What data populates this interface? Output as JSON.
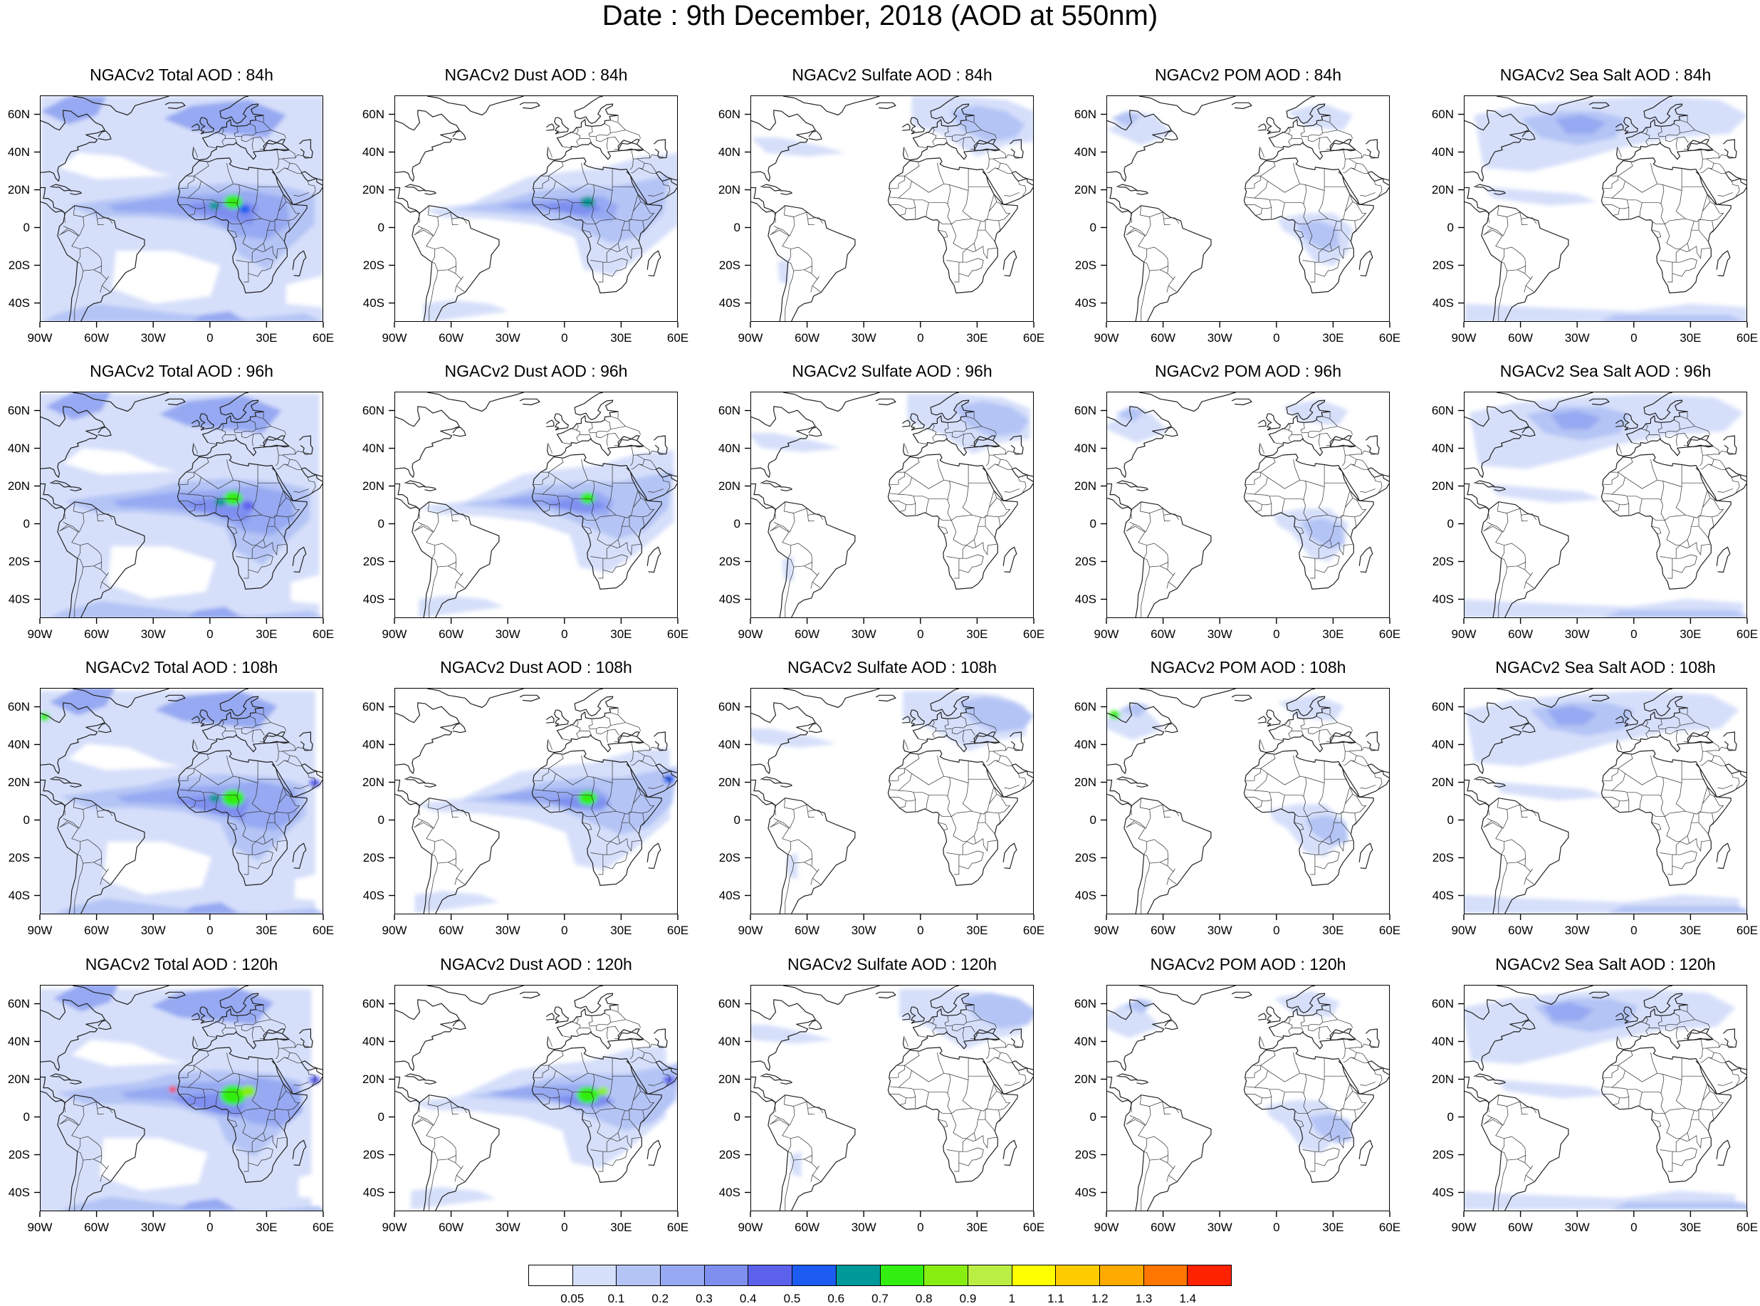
{
  "title": "Date : 9th December, 2018 (AOD at 550nm)",
  "panels": [
    [
      "NGACv2 Total AOD : 84h",
      "NGACv2 Dust AOD : 84h",
      "NGACv2 Sulfate AOD : 84h",
      "NGACv2 POM AOD : 84h",
      "NGACv2 Sea Salt AOD : 84h"
    ],
    [
      "NGACv2 Total AOD : 96h",
      "NGACv2 Dust AOD : 96h",
      "NGACv2 Sulfate AOD : 96h",
      "NGACv2 POM AOD : 96h",
      "NGACv2 Sea Salt AOD : 96h"
    ],
    [
      "NGACv2 Total AOD : 108h",
      "NGACv2 Dust AOD : 108h",
      "NGACv2 Sulfate AOD : 108h",
      "NGACv2 POM AOD : 108h",
      "NGACv2 Sea Salt AOD : 108h"
    ],
    [
      "NGACv2 Total AOD : 120h",
      "NGACv2 Dust AOD : 120h",
      "NGACv2 Sulfate AOD : 120h",
      "NGACv2 POM AOD : 120h",
      "NGACv2 Sea Salt  AOD : 120h"
    ]
  ],
  "lon_ticks": [
    "90W",
    "60W",
    "30W",
    "0",
    "30E",
    "60E"
  ],
  "lat_ticks": [
    "60N",
    "40N",
    "20N",
    "0",
    "20S",
    "40S"
  ],
  "map_extent": {
    "lon": [
      -90,
      60
    ],
    "lat": [
      -50,
      70
    ]
  },
  "colorbar": {
    "labels": [
      "0.05",
      "0.1",
      "0.2",
      "0.3",
      "0.4",
      "0.5",
      "0.6",
      "0.7",
      "0.8",
      "0.9",
      "1",
      "1.1",
      "1.2",
      "1.3",
      "1.4"
    ],
    "colors": [
      "#ffffff",
      "#d6dffa",
      "#b4c4f5",
      "#96a9f2",
      "#7e8ff0",
      "#5c61ec",
      "#1c5cf0",
      "#009999",
      "#33ee11",
      "#88ee11",
      "#bbee44",
      "#ffff00",
      "#ffcc00",
      "#ffaa00",
      "#ff7700",
      "#ff2200"
    ]
  }
}
